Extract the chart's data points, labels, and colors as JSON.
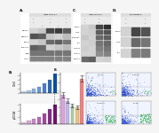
{
  "bg_color": "#f5f5f5",
  "panel_labels": [
    "A.",
    "B.",
    "C.",
    "D.",
    "E."
  ],
  "wb_light_gray": "#e0e0e0",
  "wb_mid_gray": "#c0c0c0",
  "wb_dark": "#202020",
  "wb_mid": "#606060",
  "wb_light_band": "#a0a0a0",
  "header_color": "#cccccc",
  "bar_colors_CDV4": [
    "#c8e0f8",
    "#a8c8f0",
    "#88b0e8",
    "#6898d8",
    "#4880c8",
    "#2868b8",
    "#0850a0"
  ],
  "bar_colors_pCDCA8": [
    "#e8c8e8",
    "#d8a8d8",
    "#c888c8",
    "#b868b8",
    "#a048a0",
    "#882888",
    "#701070"
  ],
  "CDV4_vals": [
    0.5,
    1.0,
    1.8,
    2.8,
    4.2,
    6.0,
    8.5
  ],
  "pCDCA8_vals": [
    0.5,
    0.9,
    1.5,
    2.2,
    3.2,
    4.5,
    6.0
  ],
  "E_vals": [
    3.5,
    2.8,
    2.2,
    2.0,
    5.5
  ],
  "E_errs": [
    0.3,
    0.25,
    0.2,
    0.25,
    0.4
  ],
  "E_colors": [
    "#e0a0e0",
    "#c0b8e8",
    "#a8d0a8",
    "#f0c080",
    "#f08080"
  ],
  "flow_dot_blue": "#2244cc",
  "flow_dot_green": "#22aa44",
  "flow_bg": "#f0f4ff"
}
